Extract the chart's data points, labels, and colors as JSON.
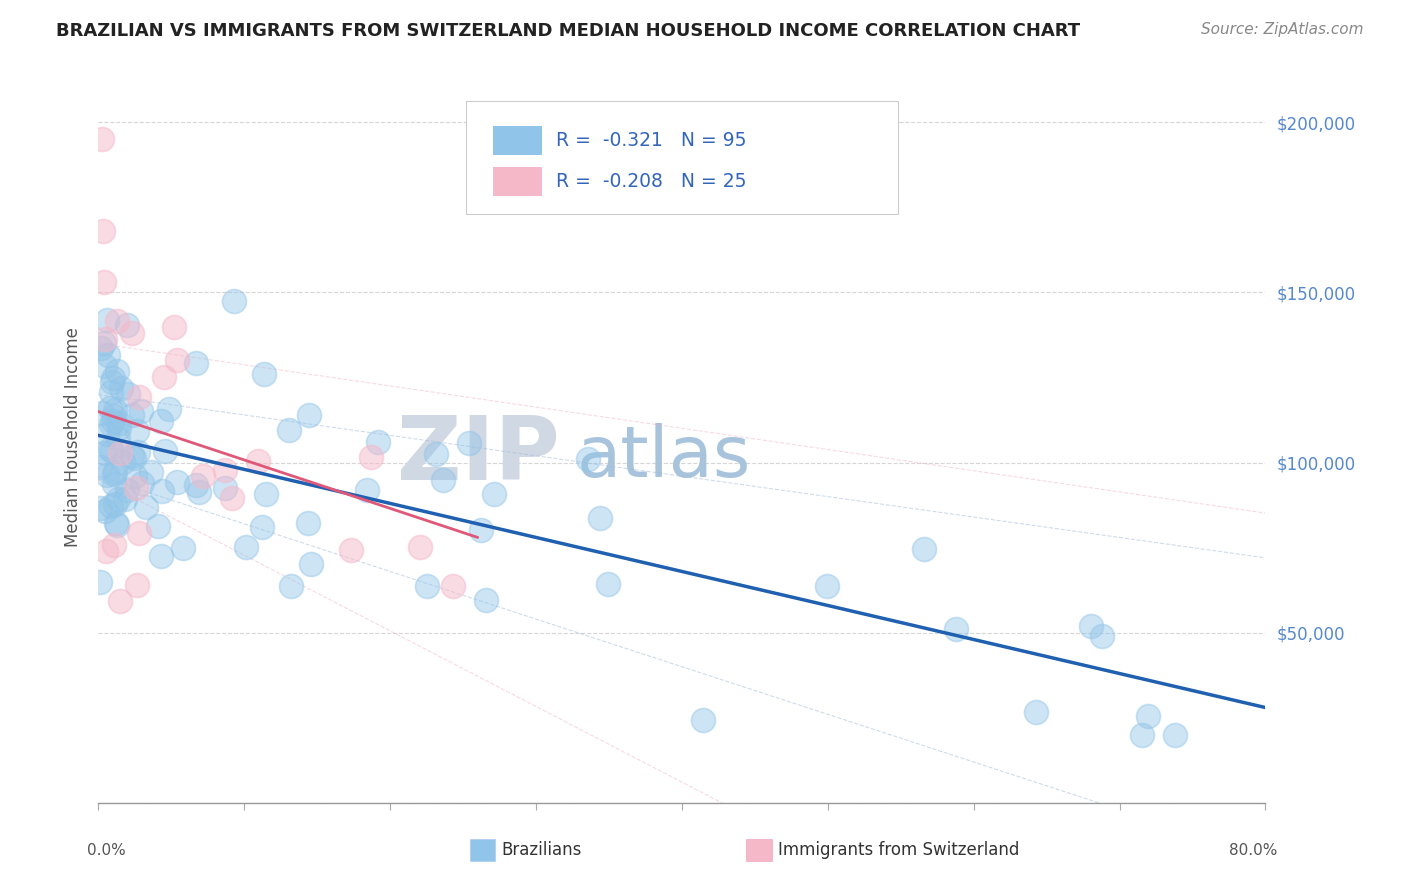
{
  "title": "BRAZILIAN VS IMMIGRANTS FROM SWITZERLAND MEDIAN HOUSEHOLD INCOME CORRELATION CHART",
  "source": "Source: ZipAtlas.com",
  "ylabel": "Median Household Income",
  "xlim": [
    0.0,
    80.0
  ],
  "ylim": [
    0,
    215000
  ],
  "blue_color": "#90c4e8",
  "pink_color": "#f5b8c8",
  "trend_blue": "#2060b0",
  "trend_pink": "#e05878",
  "ci_blue": "#a0b8d8",
  "ci_pink": "#f0a0b8",
  "watermark_zip": "#d0d8e4",
  "watermark_atlas": "#a8c4dc",
  "blue_series_label": "Brazilians",
  "pink_series_label": "Immigrants from Switzerland",
  "blue_trend_x0": 0,
  "blue_trend_y0": 108000,
  "blue_trend_x1": 80,
  "blue_trend_y1": 28000,
  "pink_trend_x0": 0,
  "pink_trend_y0": 115000,
  "pink_trend_x1": 26,
  "pink_trend_y1": 78000,
  "title_fontsize": 13,
  "source_fontsize": 11
}
